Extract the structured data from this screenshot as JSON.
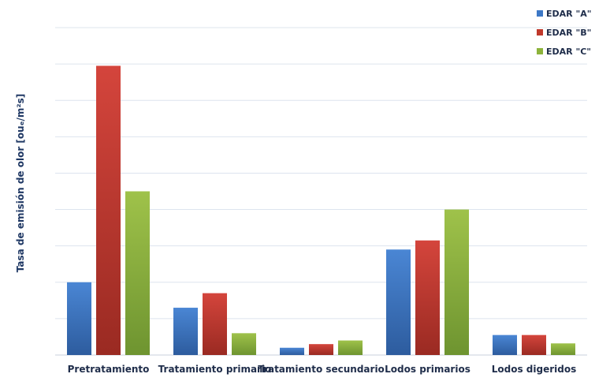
{
  "chart_data": {
    "type": "bar",
    "categories": [
      "Pretratamiento",
      "Tratamiento primario",
      "Tratamiento secundario",
      "Lodos primarios",
      "Lodos digeridos"
    ],
    "series": [
      {
        "name": "EDAR \"A\"",
        "color": "#3d78c6",
        "values": [
          2.0,
          1.3,
          0.2,
          2.9,
          0.55
        ]
      },
      {
        "name": "EDAR \"B\"",
        "color": "#c0392b",
        "values": [
          7.95,
          1.7,
          0.3,
          3.15,
          0.55
        ]
      },
      {
        "name": "EDAR \"C\"",
        "color": "#8db33b",
        "values": [
          4.5,
          0.6,
          0.4,
          4.0,
          0.32
        ]
      }
    ],
    "ylabel": "Tasa de emisión de olor [ouₑ/m²s]",
    "ylim": [
      0,
      9
    ],
    "grid": true,
    "legend": "top-right",
    "show_ytick_labels": false
  }
}
